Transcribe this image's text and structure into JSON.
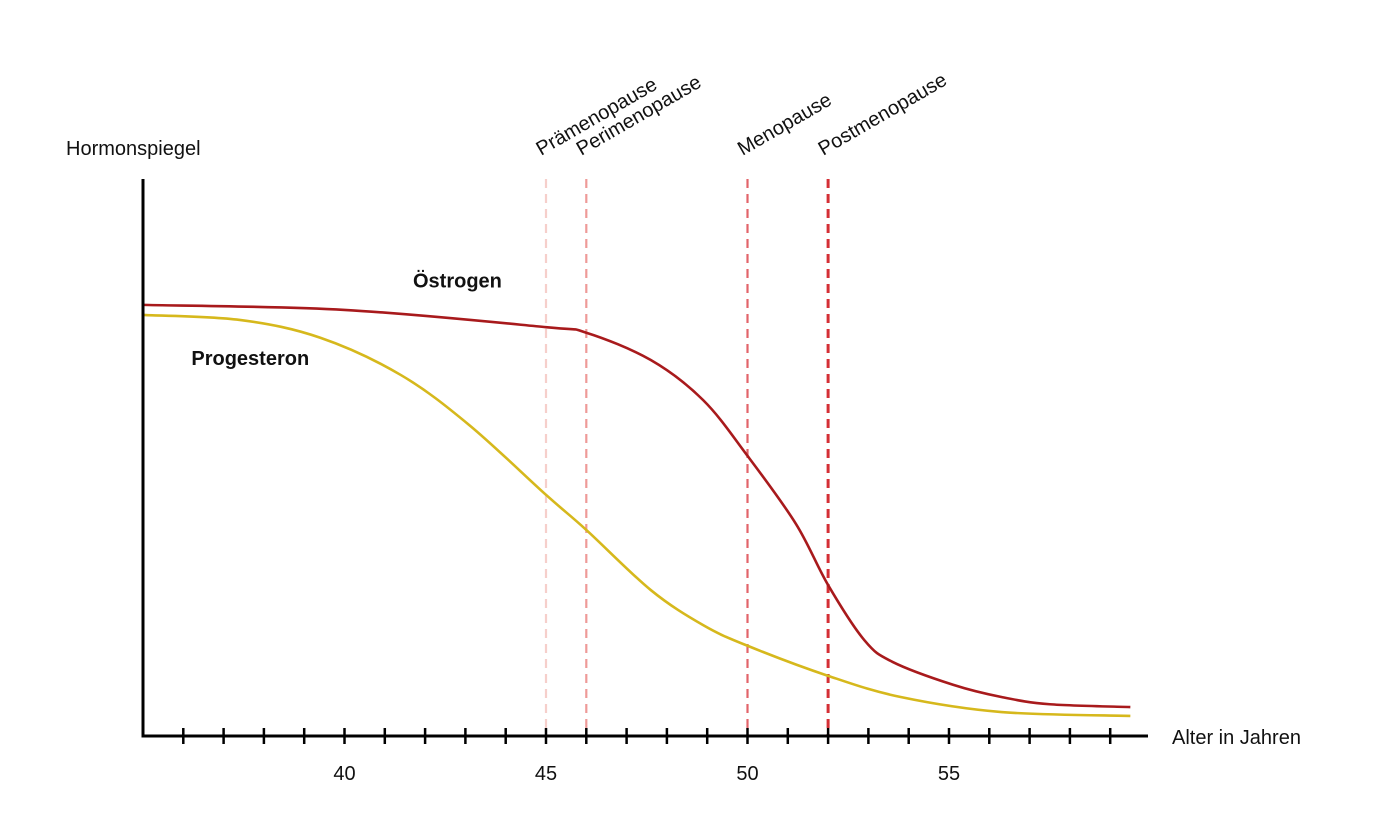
{
  "chart_data": {
    "type": "line",
    "title": "",
    "xlabel": "Alter in Jahren",
    "ylabel": "Hormonspiegel",
    "xlim": [
      35,
      60.1
    ],
    "ylim": [
      0,
      100
    ],
    "x_ticks": [
      36,
      37,
      38,
      39,
      40,
      41,
      42,
      43,
      44,
      45,
      46,
      47,
      48,
      49,
      50,
      51,
      52,
      53,
      54,
      55,
      56,
      57,
      58,
      59
    ],
    "x_tick_labels": [
      {
        "value": 40,
        "label": "40"
      },
      {
        "value": 45,
        "label": "45"
      },
      {
        "value": 50,
        "label": "50"
      },
      {
        "value": 55,
        "label": "55"
      }
    ],
    "grid": false,
    "legend": "none (inline labels)",
    "series": [
      {
        "name": "Östrogen",
        "color": "#a81a1c",
        "label_at": {
          "x": 41.7,
          "y": 80.5
        },
        "points": [
          [
            35,
            77.4
          ],
          [
            40,
            76.5
          ],
          [
            45,
            73.4
          ],
          [
            46,
            72.4
          ],
          [
            47.6,
            67.5
          ],
          [
            48.9,
            60.3
          ],
          [
            50,
            50.3
          ],
          [
            51.2,
            38.1
          ],
          [
            52,
            27.1
          ],
          [
            52.9,
            17.2
          ],
          [
            53.6,
            13.3
          ],
          [
            55.1,
            9.2
          ],
          [
            56.3,
            7.0
          ],
          [
            57.5,
            5.7
          ],
          [
            59.5,
            5.2
          ]
        ]
      },
      {
        "name": "Progesteron",
        "color": "#d6b81c",
        "label_at": {
          "x": 36.2,
          "y": 66.6
        },
        "points": [
          [
            35,
            75.6
          ],
          [
            37.4,
            74.7
          ],
          [
            39.4,
            71.5
          ],
          [
            41.4,
            64.8
          ],
          [
            43.1,
            55.8
          ],
          [
            45,
            43.3
          ],
          [
            46,
            37.0
          ],
          [
            47.6,
            26.2
          ],
          [
            48.9,
            19.9
          ],
          [
            50,
            16.2
          ],
          [
            52,
            10.8
          ],
          [
            53.8,
            7.0
          ],
          [
            56.3,
            4.3
          ],
          [
            59.5,
            3.6
          ]
        ]
      }
    ],
    "annotations": [
      {
        "type": "vline",
        "x": 45,
        "label": "Prämenopause",
        "color": "#f6cfcb"
      },
      {
        "type": "vline",
        "x": 46,
        "label": "Perimenopause",
        "color": "#ee9a98"
      },
      {
        "type": "vline",
        "x": 50,
        "label": "Menopause",
        "color": "#e2646a"
      },
      {
        "type": "vline",
        "x": 52,
        "label": "Postmenopause",
        "color": "#d42f35"
      }
    ]
  }
}
